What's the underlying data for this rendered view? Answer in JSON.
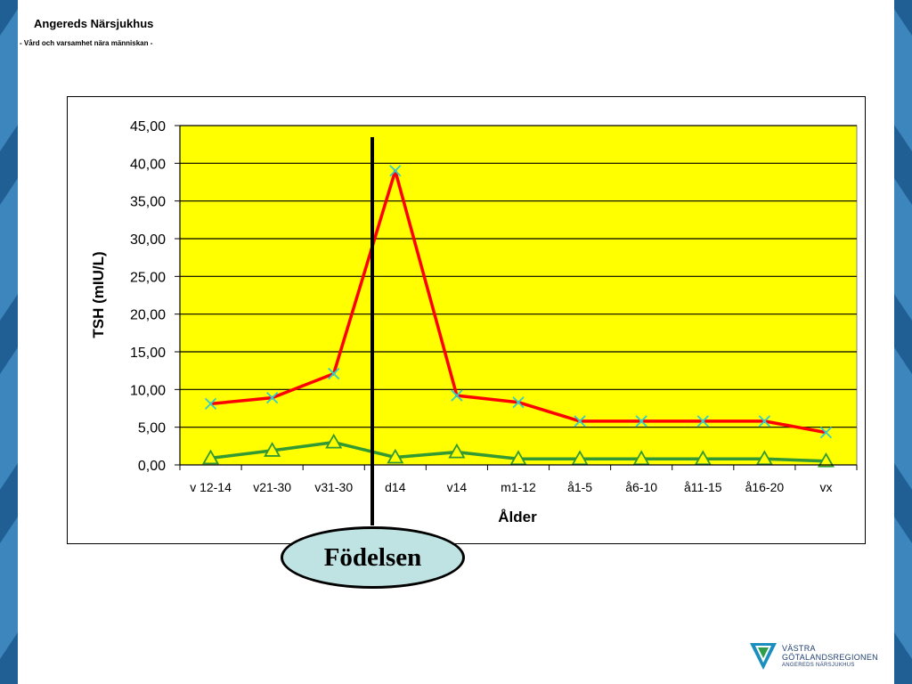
{
  "header": {
    "title": "Angereds Närsjukhus",
    "subtitle": "- Vård och varsamhet nära människan -"
  },
  "annotation": {
    "birth_label": "Födelsen",
    "birth_after_category": "v31-30"
  },
  "logo": {
    "line1": "VÄSTRA",
    "line2": "GÖTALANDSREGIONEN",
    "line3": "ANGEREDS NÄRSJUKHUS"
  },
  "colors": {
    "plot_background": "#ffff00",
    "upper_series": "#ff0000",
    "lower_series": "#339933",
    "upper_marker": "#33cccc",
    "lower_marker": "#ffff00",
    "side_band": "#1f5f94"
  },
  "chart_data": {
    "type": "line",
    "categories": [
      "v 12-14",
      "v21-30",
      "v31-30",
      "d14",
      "v14",
      "m1-12",
      "å1-5",
      "å6-10",
      "å11-15",
      "å16-20",
      "vx"
    ],
    "series": [
      {
        "values": [
          8.1,
          8.9,
          12.1,
          39.0,
          9.2,
          8.3,
          5.8,
          5.8,
          5.8,
          5.8,
          4.3
        ],
        "marker": "x"
      },
      {
        "values": [
          0.9,
          1.9,
          3.0,
          1.0,
          1.7,
          0.8,
          0.8,
          0.8,
          0.8,
          0.8,
          0.5
        ],
        "marker": "triangle"
      }
    ],
    "xlabel": "Ålder",
    "ylabel": "TSH (mIU/L)",
    "ylim": [
      0,
      45
    ],
    "yticks": [
      "0,00",
      "5,00",
      "10,00",
      "15,00",
      "20,00",
      "25,00",
      "30,00",
      "35,00",
      "40,00",
      "45,00"
    ],
    "grid": true,
    "legend": "none"
  }
}
